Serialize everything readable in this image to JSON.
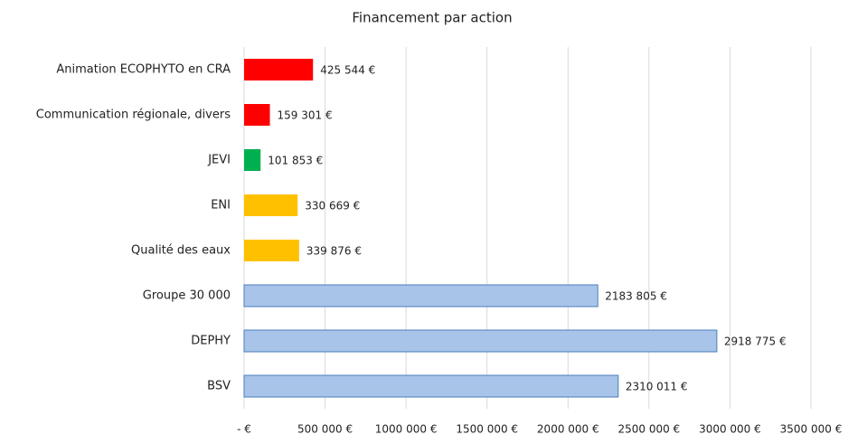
{
  "chart_data": {
    "type": "barh",
    "title": "Financement par action",
    "categories": [
      "Animation ECOPHYTO en CRA",
      "Communication régionale, divers",
      "JEVI",
      "ENI",
      "Qualité des eaux",
      "Groupe 30 000",
      "DEPHY",
      "BSV"
    ],
    "values": [
      425544,
      159301,
      101853,
      330669,
      339876,
      2183805,
      2918775,
      2310011
    ],
    "value_labels": [
      "425 544 €",
      "159 301 €",
      "101 853 €",
      "330 669 €",
      "339 876 €",
      "2183 805 €",
      "2918 775 €",
      "2310 011 €"
    ],
    "colors": [
      "#ff0000",
      "#ff0000",
      "#00b050",
      "#ffc000",
      "#ffc000",
      "#a9c4e9",
      "#a9c4e9",
      "#a9c4e9"
    ],
    "xlim": [
      0,
      3500000
    ],
    "xticks": [
      {
        "value": 0,
        "label": "-   €"
      },
      {
        "value": 500000,
        "label": "500 000 €"
      },
      {
        "value": 1000000,
        "label": "1000 000 €"
      },
      {
        "value": 1500000,
        "label": "1500 000 €"
      },
      {
        "value": 2000000,
        "label": "2000 000 €"
      },
      {
        "value": 2500000,
        "label": "2500 000 €"
      },
      {
        "value": 3000000,
        "label": "3000 000 €"
      },
      {
        "value": 3500000,
        "label": "3500 000 €"
      }
    ],
    "grid": true
  }
}
